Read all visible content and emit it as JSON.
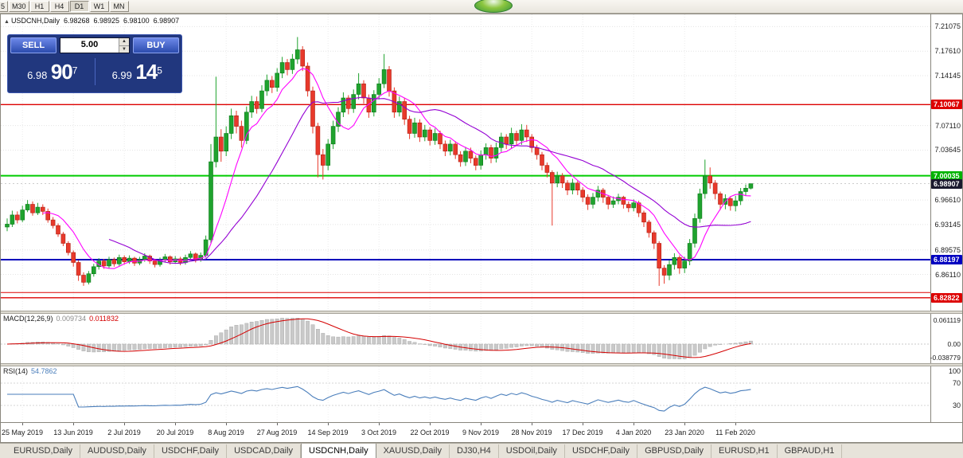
{
  "toolbar": {
    "buttons": [
      "5",
      "M30",
      "H1",
      "H4",
      "D1",
      "W1",
      "MN"
    ],
    "active": "D1"
  },
  "chart": {
    "header": {
      "collapse_icon": "▲",
      "symbol": "USDCNH,Daily",
      "open": "6.98268",
      "high": "6.98925",
      "low": "6.98100",
      "close": "6.98907"
    },
    "trade_panel": {
      "sell_label": "SELL",
      "buy_label": "BUY",
      "volume": "5.00",
      "spinner_up_icon": "▲",
      "spinner_down_icon": "▼",
      "sell": {
        "small": "6.98",
        "big": "90",
        "sup": "7"
      },
      "buy": {
        "small": "6.99",
        "big": "14",
        "sup": "5"
      }
    }
  },
  "chart_data": {
    "type": "candlestick",
    "symbol": "USDCNH",
    "timeframe": "Daily",
    "candle_colors": {
      "up": "#1fa32e",
      "up_border": "#0a7a18",
      "down": "#e8392b",
      "down_border": "#b01e12"
    },
    "y_axis": {
      "range": [
        6.81,
        7.228
      ],
      "ticks": [
        {
          "label": "7.21075",
          "price": 7.21075
        },
        {
          "label": "7.17610",
          "price": 7.1761
        },
        {
          "label": "7.14145",
          "price": 7.14145
        },
        {
          "label": "7.07110",
          "price": 7.0711
        },
        {
          "label": "7.03645",
          "price": 7.03645
        },
        {
          "label": "6.96610",
          "price": 6.9661
        },
        {
          "label": "6.93145",
          "price": 6.93145
        },
        {
          "label": "6.89575",
          "price": 6.89575
        },
        {
          "label": "6.86110",
          "price": 6.8611
        }
      ],
      "badges": [
        {
          "label": "7.10067",
          "price": 7.10067,
          "bg": "#dd0000"
        },
        {
          "label": "7.00035",
          "price": 7.00035,
          "bg": "#00b300"
        },
        {
          "label": "6.98907",
          "price": 6.98907,
          "bg": "#1a1a2e"
        },
        {
          "label": "6.88197",
          "price": 6.88197,
          "bg": "#0000c0"
        },
        {
          "label": "6.82822",
          "price": 6.82822,
          "bg": "#dd0000"
        }
      ]
    },
    "horizontal_lines": [
      {
        "price": 7.10067,
        "color": "#dd0000",
        "width": 1.4
      },
      {
        "price": 7.00035,
        "color": "#00cc00",
        "width": 2
      },
      {
        "price": 6.88197,
        "color": "#0000bb",
        "width": 2
      },
      {
        "price": 6.98907,
        "color": "#bbbbbb",
        "width": 0.8
      },
      {
        "price": 6.8355,
        "color": "#dd0000",
        "width": 1
      },
      {
        "price": 6.82822,
        "color": "#dd0000",
        "width": 1.4
      }
    ],
    "moving_averages": [
      {
        "period": 8,
        "color": "#ff00ff"
      },
      {
        "period": 21,
        "color": "#9400d3"
      }
    ],
    "x_labels": [
      {
        "index": 3,
        "label": "25 May 2019"
      },
      {
        "index": 13,
        "label": "13 Jun 2019"
      },
      {
        "index": 23,
        "label": "2 Jul 2019"
      },
      {
        "index": 33,
        "label": "20 Jul 2019"
      },
      {
        "index": 43,
        "label": "8 Aug 2019"
      },
      {
        "index": 53,
        "label": "27 Aug 2019"
      },
      {
        "index": 63,
        "label": "14 Sep 2019"
      },
      {
        "index": 73,
        "label": "3 Oct 2019"
      },
      {
        "index": 83,
        "label": "22 Oct 2019"
      },
      {
        "index": 93,
        "label": "9 Nov 2019"
      },
      {
        "index": 103,
        "label": "28 Nov 2019"
      },
      {
        "index": 113,
        "label": "17 Dec 2019"
      },
      {
        "index": 123,
        "label": "4 Jan 2020"
      },
      {
        "index": 133,
        "label": "23 Jan 2020"
      },
      {
        "index": 143,
        "label": "11 Feb 2020"
      }
    ],
    "candles_ohlc": [
      [
        6.928,
        6.94,
        6.922,
        6.932
      ],
      [
        6.932,
        6.951,
        6.928,
        6.945
      ],
      [
        6.945,
        6.95,
        6.933,
        6.938
      ],
      [
        6.938,
        6.958,
        6.935,
        6.952
      ],
      [
        6.952,
        6.966,
        6.949,
        6.96
      ],
      [
        6.96,
        6.964,
        6.944,
        6.948
      ],
      [
        6.948,
        6.962,
        6.945,
        6.956
      ],
      [
        6.956,
        6.96,
        6.945,
        6.95
      ],
      [
        6.95,
        6.954,
        6.934,
        6.938
      ],
      [
        6.938,
        6.942,
        6.926,
        6.93
      ],
      [
        6.93,
        6.933,
        6.914,
        6.918
      ],
      [
        6.918,
        6.921,
        6.901,
        6.905
      ],
      [
        6.905,
        6.908,
        6.888,
        6.892
      ],
      [
        6.892,
        6.895,
        6.872,
        6.878
      ],
      [
        6.878,
        6.881,
        6.852,
        6.86
      ],
      [
        6.86,
        6.864,
        6.845,
        6.85
      ],
      [
        6.85,
        6.866,
        6.847,
        6.862
      ],
      [
        6.862,
        6.876,
        6.858,
        6.872
      ],
      [
        6.872,
        6.884,
        6.868,
        6.88
      ],
      [
        6.88,
        6.883,
        6.869,
        6.873
      ],
      [
        6.873,
        6.886,
        6.87,
        6.882
      ],
      [
        6.882,
        6.885,
        6.872,
        6.876
      ],
      [
        6.876,
        6.889,
        6.873,
        6.885
      ],
      [
        6.885,
        6.888,
        6.875,
        6.879
      ],
      [
        6.879,
        6.888,
        6.876,
        6.884
      ],
      [
        6.884,
        6.886,
        6.873,
        6.877
      ],
      [
        6.877,
        6.886,
        6.874,
        6.882
      ],
      [
        6.882,
        6.891,
        6.879,
        6.887
      ],
      [
        6.887,
        6.889,
        6.876,
        6.88
      ],
      [
        6.88,
        6.883,
        6.871,
        6.875
      ],
      [
        6.875,
        6.885,
        6.872,
        6.881
      ],
      [
        6.881,
        6.89,
        6.878,
        6.886
      ],
      [
        6.886,
        6.888,
        6.875,
        6.879
      ],
      [
        6.879,
        6.887,
        6.876,
        6.883
      ],
      [
        6.883,
        6.886,
        6.874,
        6.878
      ],
      [
        6.878,
        6.889,
        6.875,
        6.885
      ],
      [
        6.885,
        6.894,
        6.882,
        6.89
      ],
      [
        6.89,
        6.892,
        6.878,
        6.882
      ],
      [
        6.882,
        6.892,
        6.879,
        6.888
      ],
      [
        6.888,
        6.916,
        6.885,
        6.91
      ],
      [
        6.91,
        7.045,
        6.905,
        7.02
      ],
      [
        7.02,
        7.14,
        7.012,
        7.055
      ],
      [
        7.055,
        7.066,
        7.02,
        7.035
      ],
      [
        7.035,
        7.07,
        7.028,
        7.06
      ],
      [
        7.06,
        7.095,
        7.052,
        7.085
      ],
      [
        7.085,
        7.092,
        7.06,
        7.07
      ],
      [
        7.07,
        7.078,
        7.04,
        7.05
      ],
      [
        7.05,
        7.098,
        7.045,
        7.09
      ],
      [
        7.09,
        7.113,
        7.082,
        7.105
      ],
      [
        7.105,
        7.112,
        7.088,
        7.095
      ],
      [
        7.095,
        7.128,
        7.09,
        7.12
      ],
      [
        7.12,
        7.143,
        7.113,
        7.135
      ],
      [
        7.135,
        7.141,
        7.117,
        7.125
      ],
      [
        7.125,
        7.152,
        7.119,
        7.145
      ],
      [
        7.145,
        7.168,
        7.138,
        7.16
      ],
      [
        7.16,
        7.165,
        7.142,
        7.15
      ],
      [
        7.15,
        7.172,
        7.144,
        7.165
      ],
      [
        7.165,
        7.196,
        7.158,
        7.178
      ],
      [
        7.178,
        7.183,
        7.148,
        7.155
      ],
      [
        7.155,
        7.16,
        7.112,
        7.12
      ],
      [
        7.12,
        7.126,
        7.06,
        7.07
      ],
      [
        7.07,
        7.075,
        6.998,
        7.03
      ],
      [
        7.03,
        7.038,
        6.995,
        7.015
      ],
      [
        7.015,
        7.052,
        7.008,
        7.045
      ],
      [
        7.045,
        7.078,
        7.038,
        7.07
      ],
      [
        7.07,
        7.097,
        7.062,
        7.09
      ],
      [
        7.09,
        7.118,
        7.083,
        7.11
      ],
      [
        7.11,
        7.114,
        7.087,
        7.095
      ],
      [
        7.095,
        7.122,
        7.089,
        7.115
      ],
      [
        7.115,
        7.145,
        7.108,
        7.13
      ],
      [
        7.13,
        7.135,
        7.102,
        7.11
      ],
      [
        7.11,
        7.115,
        7.082,
        7.09
      ],
      [
        7.09,
        7.121,
        7.084,
        7.115
      ],
      [
        7.115,
        7.138,
        7.108,
        7.13
      ],
      [
        7.13,
        7.172,
        7.124,
        7.15
      ],
      [
        7.15,
        7.155,
        7.112,
        7.12
      ],
      [
        7.12,
        7.125,
        7.082,
        7.09
      ],
      [
        7.09,
        7.112,
        7.084,
        7.105
      ],
      [
        7.105,
        7.11,
        7.072,
        7.08
      ],
      [
        7.08,
        7.085,
        7.052,
        7.06
      ],
      [
        7.06,
        7.082,
        7.054,
        7.075
      ],
      [
        7.075,
        7.08,
        7.048,
        7.055
      ],
      [
        7.055,
        7.072,
        7.049,
        7.065
      ],
      [
        7.065,
        7.069,
        7.043,
        7.05
      ],
      [
        7.05,
        7.067,
        7.044,
        7.06
      ],
      [
        7.06,
        7.064,
        7.038,
        7.045
      ],
      [
        7.045,
        7.05,
        7.028,
        7.035
      ],
      [
        7.035,
        7.051,
        7.029,
        7.045
      ],
      [
        7.045,
        7.049,
        7.024,
        7.03
      ],
      [
        7.03,
        7.035,
        7.013,
        7.02
      ],
      [
        7.02,
        7.041,
        7.014,
        7.035
      ],
      [
        7.035,
        7.04,
        7.018,
        7.025
      ],
      [
        7.025,
        7.029,
        7.008,
        7.015
      ],
      [
        7.015,
        7.036,
        7.009,
        7.03
      ],
      [
        7.03,
        7.046,
        7.023,
        7.04
      ],
      [
        7.04,
        7.044,
        7.018,
        7.025
      ],
      [
        7.025,
        7.047,
        7.019,
        7.04
      ],
      [
        7.04,
        7.061,
        7.034,
        7.055
      ],
      [
        7.055,
        7.059,
        7.038,
        7.045
      ],
      [
        7.045,
        7.068,
        7.039,
        7.06
      ],
      [
        7.06,
        7.064,
        7.043,
        7.05
      ],
      [
        7.05,
        7.073,
        7.044,
        7.065
      ],
      [
        7.065,
        7.072,
        7.048,
        7.055
      ],
      [
        7.055,
        7.059,
        7.033,
        7.04
      ],
      [
        7.04,
        7.044,
        7.023,
        7.03
      ],
      [
        7.03,
        7.034,
        7.008,
        7.015
      ],
      [
        7.015,
        7.019,
        6.998,
        7.005
      ],
      [
        7.005,
        7.008,
        6.93,
        6.99
      ],
      [
        6.99,
        7.006,
        6.984,
        7.0
      ],
      [
        7.0,
        7.004,
        6.983,
        6.99
      ],
      [
        6.99,
        6.994,
        6.973,
        6.98
      ],
      [
        6.98,
        6.996,
        6.974,
        6.99
      ],
      [
        6.99,
        6.993,
        6.973,
        6.98
      ],
      [
        6.98,
        6.984,
        6.963,
        6.97
      ],
      [
        6.97,
        6.974,
        6.952,
        6.96
      ],
      [
        6.96,
        6.976,
        6.954,
        6.97
      ],
      [
        6.97,
        6.986,
        6.964,
        6.98
      ],
      [
        6.98,
        6.983,
        6.962,
        6.97
      ],
      [
        6.97,
        6.973,
        6.953,
        6.96
      ],
      [
        6.96,
        6.971,
        6.955,
        6.965
      ],
      [
        6.965,
        6.975,
        6.96,
        6.97
      ],
      [
        6.97,
        6.972,
        6.954,
        6.96
      ],
      [
        6.96,
        6.964,
        6.949,
        6.955
      ],
      [
        6.955,
        6.967,
        6.95,
        6.962
      ],
      [
        6.962,
        6.965,
        6.942,
        6.948
      ],
      [
        6.948,
        6.951,
        6.928,
        6.935
      ],
      [
        6.935,
        6.938,
        6.913,
        6.92
      ],
      [
        6.92,
        6.923,
        6.897,
        6.905
      ],
      [
        6.905,
        6.908,
        6.845,
        6.87
      ],
      [
        6.87,
        6.874,
        6.848,
        6.86
      ],
      [
        6.86,
        6.881,
        6.853,
        6.875
      ],
      [
        6.875,
        6.891,
        6.868,
        6.885
      ],
      [
        6.885,
        6.888,
        6.862,
        6.87
      ],
      [
        6.87,
        6.886,
        6.863,
        6.88
      ],
      [
        6.88,
        6.911,
        6.874,
        6.905
      ],
      [
        6.905,
        6.947,
        6.899,
        6.94
      ],
      [
        6.94,
        6.982,
        6.934,
        6.975
      ],
      [
        6.975,
        7.023,
        6.968,
        7.0
      ],
      [
        7.0,
        7.012,
        6.982,
        6.99
      ],
      [
        6.99,
        6.994,
        6.967,
        6.975
      ],
      [
        6.975,
        6.978,
        6.952,
        6.96
      ],
      [
        6.96,
        6.974,
        6.953,
        6.968
      ],
      [
        6.968,
        6.971,
        6.951,
        6.958
      ],
      [
        6.958,
        6.972,
        6.95,
        6.965
      ],
      [
        6.965,
        6.983,
        6.959,
        6.978
      ],
      [
        6.978,
        6.988,
        6.972,
        6.9827
      ],
      [
        6.9827,
        6.98925,
        6.981,
        6.98907
      ]
    ],
    "indicators": {
      "macd": {
        "name": "MACD(12,26,9)",
        "value_main": "0.009734",
        "value_signal": "0.011832",
        "axis_labels": [
          "0.061119",
          "0.00",
          "-0.038779"
        ],
        "histogram_color": "#c9c9c9",
        "signal_color": "#d40000"
      },
      "rsi": {
        "name": "RSI(14)",
        "value": "54.7862",
        "axis_labels": [
          "100",
          "70",
          "30"
        ],
        "levels": [
          70,
          30
        ],
        "line_color": "#4a7ebb"
      }
    }
  },
  "tabs": {
    "items": [
      "EURUSD,Daily",
      "AUDUSD,Daily",
      "USDCHF,Daily",
      "USDCAD,Daily",
      "USDCNH,Daily",
      "XAUUSD,Daily",
      "DJ30,H4",
      "USDOil,Daily",
      "USDCHF,Daily",
      "GBPUSD,Daily",
      "EURUSD,H1",
      "GBPAUD,H1"
    ],
    "active": "USDCNH,Daily"
  }
}
